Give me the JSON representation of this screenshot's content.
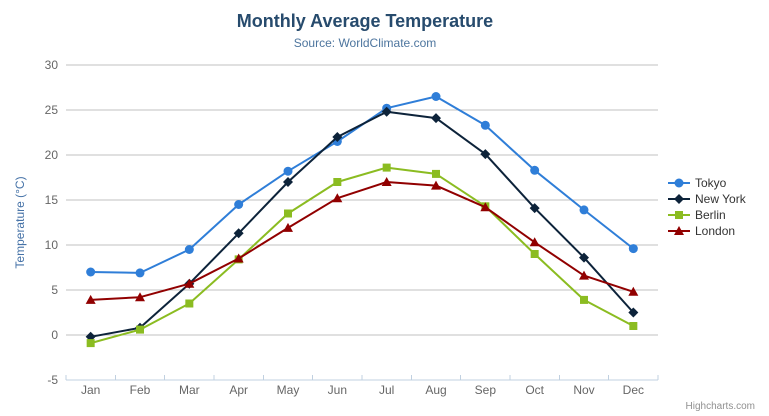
{
  "header": {
    "title": "Monthly Average Temperature",
    "subtitle": "Source: WorldClimate.com"
  },
  "export_menu": {
    "icon": "hamburger-icon"
  },
  "credits": {
    "label": "Highcharts.com"
  },
  "colors": {
    "title_text": "#274b6d",
    "subtitle_text": "#4d759e",
    "axis_label": "#666666",
    "axis_title": "#4572a7",
    "gridline": "#c0c0c0",
    "axis_line": "#c0d0e0",
    "legend_text": "#333333",
    "credits_text": "#909090"
  },
  "chart_data": {
    "type": "line",
    "title": "Monthly Average Temperature",
    "subtitle": "Source: WorldClimate.com",
    "categories": [
      "Jan",
      "Feb",
      "Mar",
      "Apr",
      "May",
      "Jun",
      "Jul",
      "Aug",
      "Sep",
      "Oct",
      "Nov",
      "Dec"
    ],
    "series": [
      {
        "name": "Tokyo",
        "color": "#2f7ed8",
        "marker": "circle",
        "values": [
          7.0,
          6.9,
          9.5,
          14.5,
          18.2,
          21.5,
          25.2,
          26.5,
          23.3,
          18.3,
          13.9,
          9.6
        ]
      },
      {
        "name": "New York",
        "color": "#0d233a",
        "marker": "diamond",
        "values": [
          -0.2,
          0.8,
          5.7,
          11.3,
          17.0,
          22.0,
          24.8,
          24.1,
          20.1,
          14.1,
          8.6,
          2.5
        ]
      },
      {
        "name": "Berlin",
        "color": "#8bbc21",
        "marker": "square",
        "values": [
          -0.9,
          0.6,
          3.5,
          8.4,
          13.5,
          17.0,
          18.6,
          17.9,
          14.3,
          9.0,
          3.9,
          1.0
        ]
      },
      {
        "name": "London",
        "color": "#910000",
        "marker": "triangle",
        "values": [
          3.9,
          4.2,
          5.7,
          8.5,
          11.9,
          15.2,
          17.0,
          16.6,
          14.2,
          10.3,
          6.6,
          4.8
        ]
      }
    ],
    "xlabel": "",
    "ylabel": "Temperature (°C)",
    "ylim": [
      -5,
      30
    ],
    "ytick_interval": 5,
    "yticks": [
      -5,
      0,
      5,
      10,
      15,
      20,
      25,
      30
    ],
    "grid": true,
    "legend_position": "right"
  }
}
